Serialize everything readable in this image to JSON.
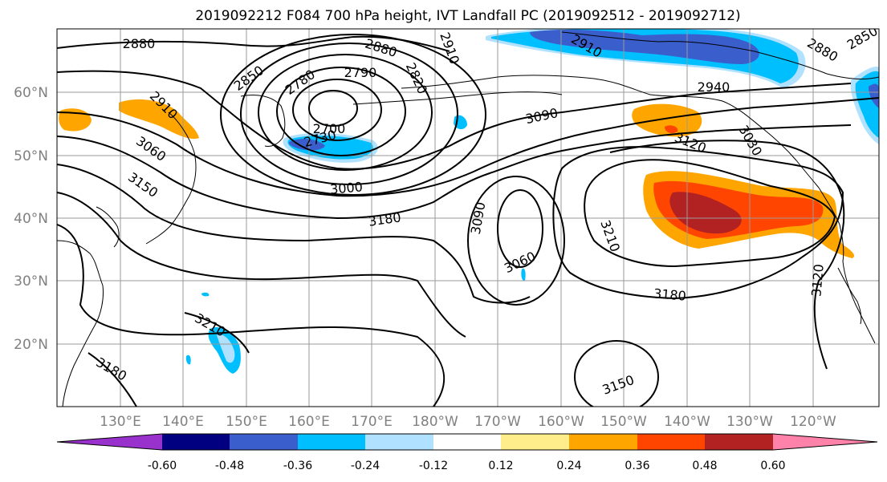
{
  "title": "2019092212 F084 700 hPa height, IVT Landfall PC (2019092512 - 2019092712)",
  "lat_labels": [
    "60°N",
    "50°N",
    "40°N",
    "30°N",
    "20°N"
  ],
  "lon_labels": [
    "130°E",
    "140°E",
    "150°E",
    "160°E",
    "170°E",
    "180°W",
    "170°W",
    "160°W",
    "150°W",
    "140°W",
    "130°W",
    "120°W"
  ],
  "contour_labels": [
    "2880",
    "2880",
    "2910",
    "2910",
    "2880",
    "2850",
    "2850",
    "2790",
    "2780",
    "2820",
    "2700",
    "2730",
    "2910",
    "3060",
    "3150",
    "3000",
    "3090",
    "3120",
    "3030",
    "2940",
    "3180",
    "3090",
    "3060",
    "3210",
    "3180",
    "3120",
    "3210",
    "3180",
    "3150"
  ],
  "colorbar": {
    "colors": [
      "#9932cc",
      "#000080",
      "#3a5fcd",
      "#00bfff",
      "#b0e2ff",
      "#ffffff",
      "#ffec8b",
      "#ffa500",
      "#ff4500",
      "#b22222",
      "#ff82ab"
    ],
    "tick_labels": [
      "-0.60",
      "-0.48",
      "-0.36",
      "-0.24",
      "-0.12",
      "0.12",
      "0.24",
      "0.36",
      "0.48",
      "0.60"
    ]
  }
}
